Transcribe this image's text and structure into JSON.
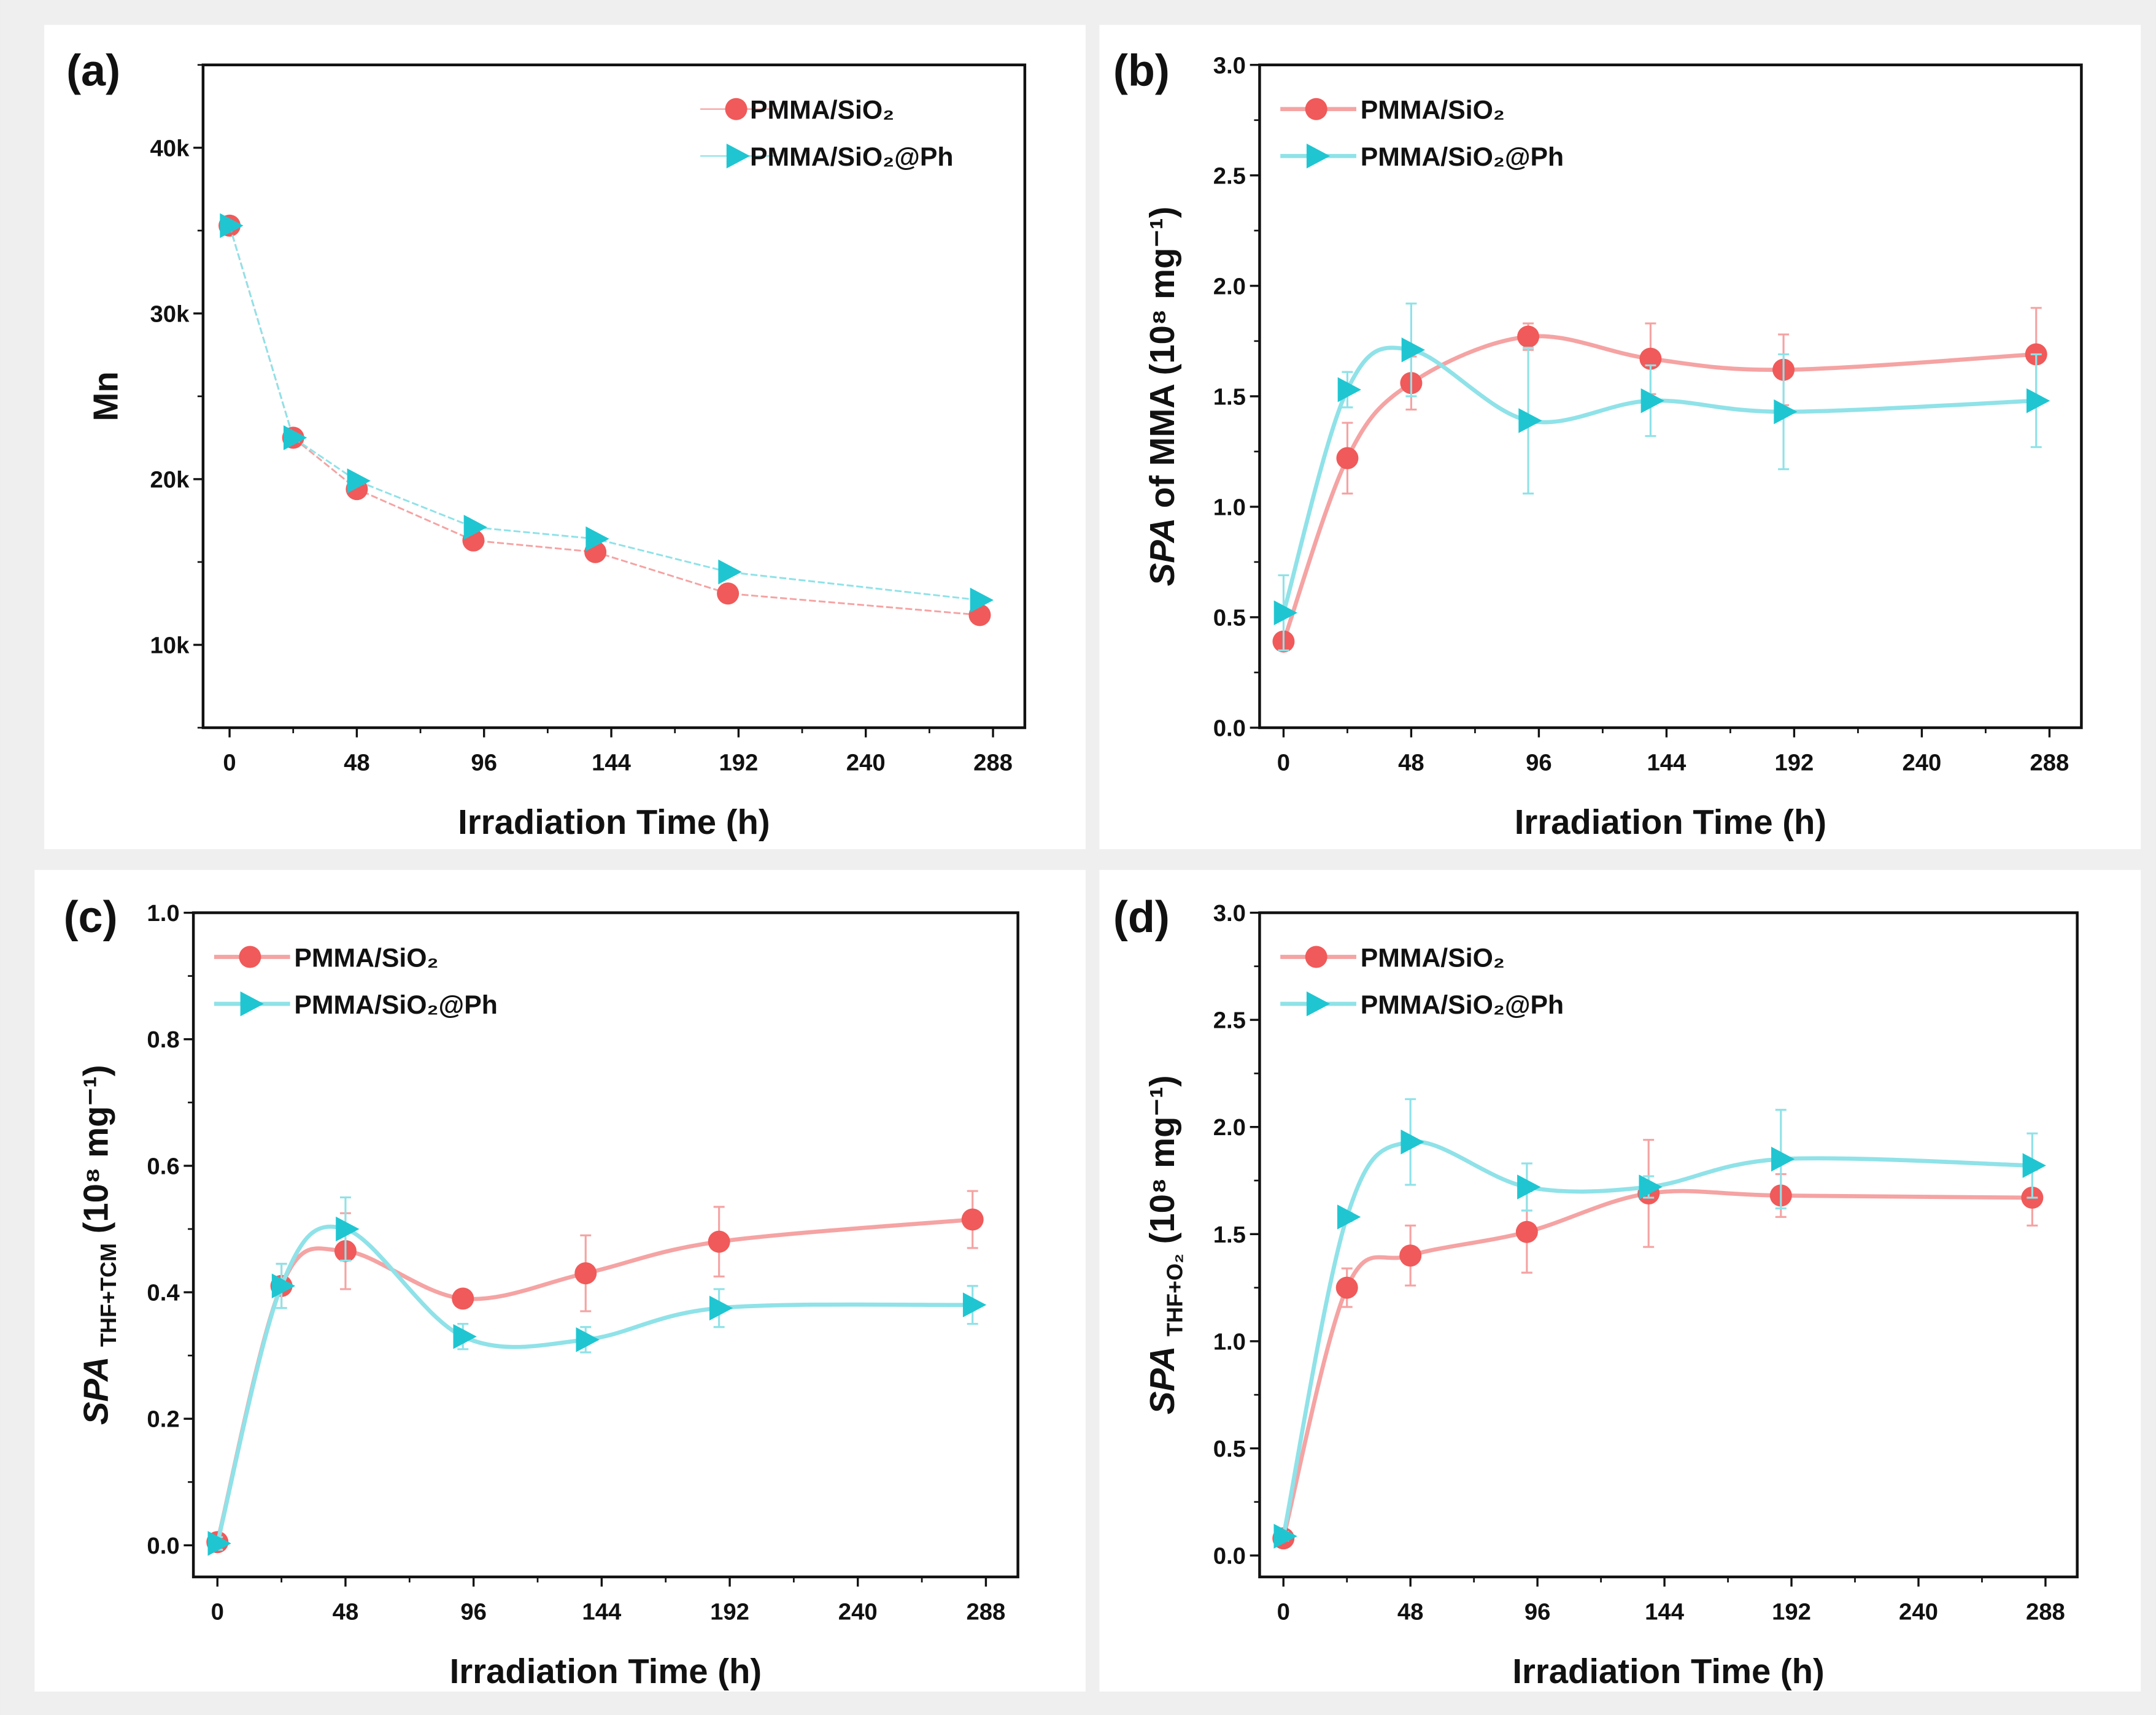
{
  "colors": {
    "series_a": "#f05a5a",
    "series_a_line": "#f5a3a3",
    "series_b": "#1fc6d1",
    "series_b_line": "#8fe2e8",
    "panel_bg": "#ffffff",
    "page_bg": "#efefef"
  },
  "chart_data": [
    {
      "panel": "(a)",
      "type": "line",
      "smooth": false,
      "xlabel": "Irradiation Time (h)",
      "ylabel": {
        "italic": "",
        "main": "Mn",
        "sub": "",
        "rest": ""
      },
      "xlim": [
        -10,
        300
      ],
      "ylim": [
        5000,
        45000
      ],
      "xticks": [
        0,
        48,
        96,
        144,
        192,
        240,
        288
      ],
      "yticks": [
        10000,
        20000,
        30000,
        40000
      ],
      "ytick_labels": [
        "10k",
        "20k",
        "30k",
        "40k"
      ],
      "yminor": 5000,
      "legend": "top-right",
      "legend_line": false,
      "x": [
        0,
        24,
        48,
        92,
        138,
        188,
        283
      ],
      "series": [
        {
          "name": "PMMA/SiO₂",
          "marker": "circle",
          "values": [
            35300,
            22500,
            19400,
            16300,
            15600,
            13100,
            11800
          ]
        },
        {
          "name": "PMMA/SiO₂@Ph",
          "marker": "triangle-right",
          "values": [
            35300,
            22500,
            19900,
            17100,
            16400,
            14400,
            12700
          ]
        }
      ]
    },
    {
      "panel": "(b)",
      "type": "line",
      "smooth": true,
      "xlabel": "Irradiation Time (h)",
      "ylabel": {
        "italic": "SPA",
        "main": " of MMA (10⁸ mg⁻¹)",
        "sub": "",
        "rest": ""
      },
      "xlim": [
        -9,
        300
      ],
      "ylim": [
        0,
        3.0
      ],
      "xticks": [
        0,
        48,
        96,
        144,
        192,
        240,
        288
      ],
      "yticks": [
        0,
        0.5,
        1.0,
        1.5,
        2.0,
        2.5,
        3.0
      ],
      "ytick_labels": [
        "0.0",
        "0.5",
        "1.0",
        "1.5",
        "2.0",
        "2.5",
        "3.0"
      ],
      "yminor": 0.25,
      "legend": "top-left",
      "legend_line": true,
      "x": [
        0,
        24,
        48,
        92,
        138,
        188,
        283
      ],
      "series": [
        {
          "name": "PMMA/SiO₂",
          "marker": "circle",
          "values": [
            0.39,
            1.22,
            1.56,
            1.77,
            1.67,
            1.62,
            1.69
          ],
          "errors": [
            0.03,
            0.16,
            0.12,
            0.06,
            0.16,
            0.16,
            0.21
          ]
        },
        {
          "name": "PMMA/SiO₂@Ph",
          "marker": "triangle-right",
          "values": [
            0.52,
            1.53,
            1.71,
            1.39,
            1.48,
            1.43,
            1.48
          ],
          "errors": [
            0.17,
            0.08,
            0.21,
            0.33,
            0.16,
            0.26,
            0.21
          ]
        }
      ]
    },
    {
      "panel": "(c)",
      "type": "line",
      "smooth": true,
      "xlabel": "Irradiation Time (h)",
      "ylabel": {
        "italic": "SPA",
        "main": " ",
        "sub": "THF+TCM",
        "rest": " (10⁸ mg⁻¹)"
      },
      "xlim": [
        -9,
        300
      ],
      "ylim": [
        -0.05,
        1.0
      ],
      "xticks": [
        0,
        48,
        96,
        144,
        192,
        240,
        288
      ],
      "yticks": [
        0,
        0.2,
        0.4,
        0.6,
        0.8,
        1.0
      ],
      "ytick_labels": [
        "0.0",
        "0.2",
        "0.4",
        "0.6",
        "0.8",
        "1.0"
      ],
      "yminor": 0.1,
      "legend": "top-left",
      "legend_line": true,
      "x": [
        0,
        24,
        48,
        92,
        138,
        188,
        283
      ],
      "series": [
        {
          "name": "PMMA/SiO₂",
          "marker": "circle",
          "values": [
            0.005,
            0.41,
            0.465,
            0.39,
            0.43,
            0.48,
            0.515
          ],
          "errors": [
            0.01,
            0.035,
            0.06,
            0.01,
            0.06,
            0.055,
            0.045
          ]
        },
        {
          "name": "PMMA/SiO₂@Ph",
          "marker": "triangle-right",
          "values": [
            0.003,
            0.41,
            0.5,
            0.33,
            0.325,
            0.375,
            0.38
          ],
          "errors": [
            0.01,
            0.035,
            0.05,
            0.02,
            0.02,
            0.03,
            0.03
          ]
        }
      ]
    },
    {
      "panel": "(d)",
      "type": "line",
      "smooth": true,
      "xlabel": "Irradiation Time (h)",
      "ylabel": {
        "italic": "SPA",
        "main": " ",
        "sub": "THF+O₂",
        "rest": " (10⁸ mg⁻¹)"
      },
      "xlim": [
        -9,
        300
      ],
      "ylim": [
        -0.1,
        3.0
      ],
      "xticks": [
        0,
        48,
        96,
        144,
        192,
        240,
        288
      ],
      "yticks": [
        0,
        0.5,
        1.0,
        1.5,
        2.0,
        2.5,
        3.0
      ],
      "ytick_labels": [
        "0.0",
        "0.5",
        "1.0",
        "1.5",
        "2.0",
        "2.5",
        "3.0"
      ],
      "yminor": 0.25,
      "legend": "top-left",
      "legend_line": true,
      "x": [
        0,
        24,
        48,
        92,
        138,
        188,
        283
      ],
      "series": [
        {
          "name": "PMMA/SiO₂",
          "marker": "circle",
          "values": [
            0.08,
            1.25,
            1.4,
            1.51,
            1.69,
            1.68,
            1.67
          ],
          "errors": [
            0.01,
            0.09,
            0.14,
            0.19,
            0.25,
            0.1,
            0.13
          ]
        },
        {
          "name": "PMMA/SiO₂@Ph",
          "marker": "triangle-right",
          "values": [
            0.09,
            1.58,
            1.93,
            1.72,
            1.72,
            1.85,
            1.82
          ],
          "errors": [
            0.02,
            0.02,
            0.2,
            0.11,
            0.05,
            0.23,
            0.15
          ]
        }
      ]
    }
  ]
}
